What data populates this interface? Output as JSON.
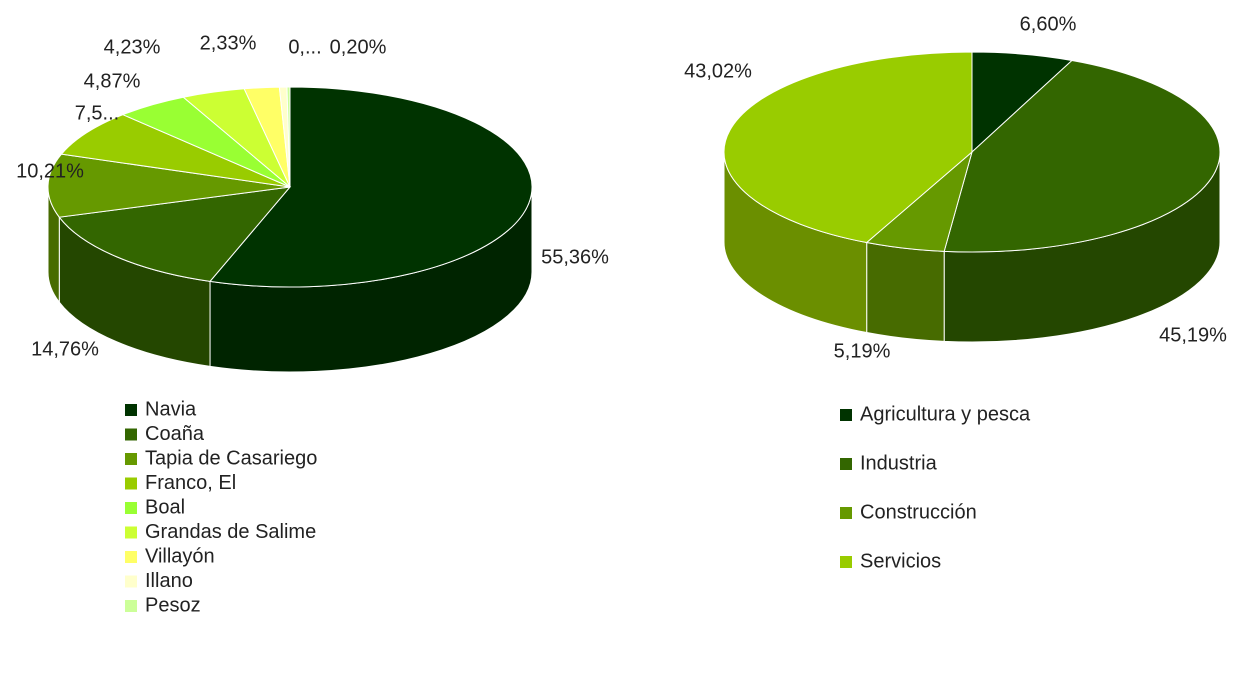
{
  "chart_data": [
    {
      "type": "pie",
      "categories": [
        "Navia",
        "Coaña",
        "Tapia de Casariego",
        "Franco, El",
        "Boal",
        "Grandas de Salime",
        "Villayón",
        "Illano",
        "Pesoz"
      ],
      "values": [
        55.36,
        14.76,
        10.21,
        7.54,
        4.87,
        4.23,
        2.33,
        0.5,
        0.2
      ],
      "value_labels": [
        "55,36%",
        "14,76%",
        "10,21%",
        "7,5...",
        "4,87%",
        "4,23%",
        "2,33%",
        "0,...",
        "0,20%"
      ],
      "colors": [
        "#003300",
        "#336600",
        "#669900",
        "#99cc00",
        "#99ff33",
        "#ccff33",
        "#ffff66",
        "#ffffcc",
        "#ccff99"
      ]
    },
    {
      "type": "pie",
      "categories": [
        "Agricultura y pesca",
        "Industria",
        "Construcción",
        "Servicios"
      ],
      "values": [
        6.6,
        45.19,
        5.19,
        43.02
      ],
      "value_labels": [
        "6,60%",
        "45,19%",
        "5,19%",
        "43,02%"
      ],
      "colors": [
        "#003300",
        "#336600",
        "#669900",
        "#99cc00"
      ]
    }
  ]
}
